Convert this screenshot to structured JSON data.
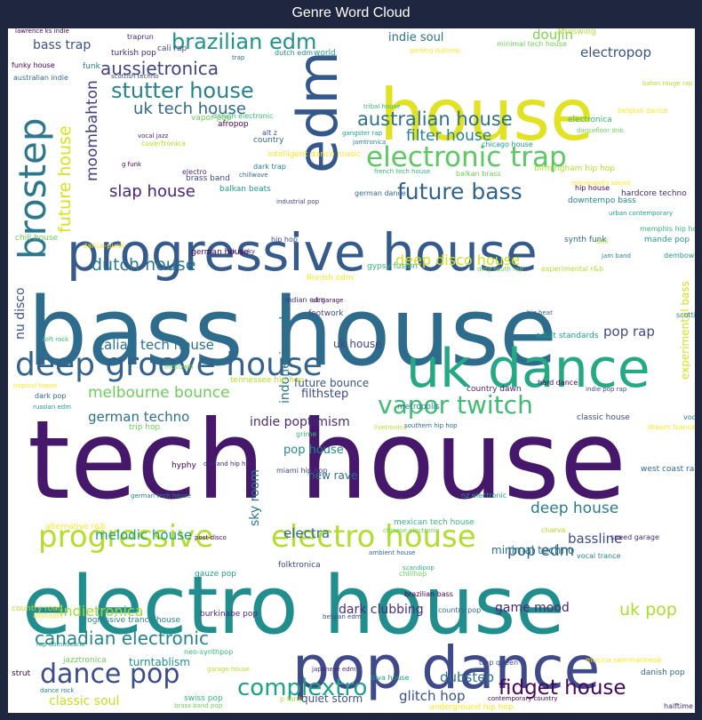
{
  "chart_data": {
    "type": "wordcloud",
    "title": "Genre Word Cloud",
    "colormap": "viridis",
    "background": "#ffffff",
    "words": [
      {
        "text": "tech house",
        "color": "#46186b"
      },
      {
        "text": "bass house",
        "color": "#2e6c8e"
      },
      {
        "text": "electro house",
        "color": "#218e8d"
      },
      {
        "text": "house",
        "color": "#e0e223"
      },
      {
        "text": "edm",
        "color": "#34588c"
      },
      {
        "text": "progressive house",
        "color": "#355b8d"
      },
      {
        "text": "pop dance",
        "color": "#3e4a89"
      },
      {
        "text": "uk dance",
        "color": "#25a883"
      },
      {
        "text": "deep groove house",
        "color": "#33628d"
      },
      {
        "text": "progressive",
        "color": "#b5de2c"
      },
      {
        "text": "electro house",
        "color": "#b0dd2f"
      },
      {
        "text": "electronic trap",
        "color": "#5cc863"
      },
      {
        "text": "brostep",
        "color": "#2a778e"
      },
      {
        "text": "future bass",
        "color": "#33628d"
      },
      {
        "text": "vapor twitch",
        "color": "#3fbc73"
      },
      {
        "text": "dance pop",
        "color": "#3d4d8a"
      },
      {
        "text": "fidget house",
        "color": "#46085c"
      },
      {
        "text": "brazilian edm",
        "color": "#21918c"
      },
      {
        "text": "stutter house",
        "color": "#26828e"
      },
      {
        "text": "complextro",
        "color": "#1fa187"
      },
      {
        "text": "australian house",
        "color": "#2c728e"
      },
      {
        "text": "canadian electronic",
        "color": "#25848e"
      },
      {
        "text": "uk tech house",
        "color": "#31688e"
      },
      {
        "text": "dutch house",
        "color": "#2a788e"
      },
      {
        "text": "italian tech house",
        "color": "#2d708e"
      },
      {
        "text": "melbourne bounce",
        "color": "#6ccd5a"
      },
      {
        "text": "aussietronica",
        "color": "#414487"
      },
      {
        "text": "slap house",
        "color": "#482576"
      },
      {
        "text": "future house",
        "color": "#d8e219"
      },
      {
        "text": "filter house",
        "color": "#26828e"
      },
      {
        "text": "deep disco house",
        "color": "#d2e21b"
      },
      {
        "text": "moombahton",
        "color": "#433e85"
      },
      {
        "text": "nu disco",
        "color": "#3b518b"
      },
      {
        "text": "indonesian edm",
        "color": "#2c728e"
      },
      {
        "text": "german techno",
        "color": "#2d708e"
      },
      {
        "text": "indie poptimism",
        "color": "#472c7a"
      },
      {
        "text": "doujin",
        "color": "#7fd34e"
      },
      {
        "text": "bass trap",
        "color": "#3b528b"
      },
      {
        "text": "electropop",
        "color": "#3b528b"
      },
      {
        "text": "uk pop",
        "color": "#addc30"
      },
      {
        "text": "pop edm",
        "color": "#32658e"
      },
      {
        "text": "deep house",
        "color": "#287d8e"
      },
      {
        "text": "bassline",
        "color": "#3d4d8a"
      },
      {
        "text": "indie soul",
        "color": "#2e6f8e"
      },
      {
        "text": "indietronica",
        "color": "#a0da39"
      },
      {
        "text": "melodic house",
        "color": "#1f9a8a"
      },
      {
        "text": "electra",
        "color": "#31688e"
      },
      {
        "text": "dark clubbing",
        "color": "#472d7b"
      },
      {
        "text": "game mood",
        "color": "#482878"
      },
      {
        "text": "glitch hop",
        "color": "#3b528b"
      },
      {
        "text": "dubstep",
        "color": "#2d718e"
      },
      {
        "text": "sky room",
        "color": "#2a788e"
      },
      {
        "text": "pop rap",
        "color": "#3f4889"
      },
      {
        "text": "minimal techno",
        "color": "#2d708e"
      },
      {
        "text": "filthstep",
        "color": "#3e4a89"
      },
      {
        "text": "future bounce",
        "color": "#3b528b"
      },
      {
        "text": "new rave",
        "color": "#2e6e8e"
      },
      {
        "text": "experimental bass",
        "color": "#d2e21b"
      },
      {
        "text": "classic soul",
        "color": "#c5e021"
      },
      {
        "text": "quiet storm",
        "color": "#3b528b"
      },
      {
        "text": "turntablism",
        "color": "#21918c"
      },
      {
        "text": "pop house",
        "color": "#23888e"
      },
      {
        "text": "uk house",
        "color": "#3e4989"
      }
    ],
    "small_words": [
      "lawrence ks indie",
      "traprun",
      "cali rap",
      "trap",
      "dutch edm",
      "world",
      "tribal house",
      "minimal tech house",
      "afroswing",
      "gaming dubstep",
      "funky house",
      "turkish pop",
      "scottish techno",
      "australian indie",
      "funk",
      "gangster rap",
      "danish electronic",
      "vapor pop",
      "baton rouge rap",
      "belgian dance",
      "afropop",
      "vocal jazz",
      "alt z",
      "country",
      "jamtronica",
      "chicago house",
      "electronica",
      "dancefloor dnb",
      "covertronica",
      "intelligent dance music",
      "g funk",
      "electro",
      "brass band",
      "chillwave",
      "dark trap",
      "balkan beats",
      "french tech house",
      "balkan brass",
      "birmingham hip hop",
      "minneapolis sound",
      "hip house",
      "hardcore techno",
      "industrial pop",
      "german dance",
      "downtempo bass",
      "urban contemporary",
      "memphis hip hop",
      "chill house",
      "drill",
      "dance-punk",
      "german house",
      "uk funky",
      "hip hop",
      "synth funk",
      "jam band",
      "dembow",
      "gypsy fusion",
      "dirty south rap",
      "experimental r&b",
      "finnish edm",
      "uk garage",
      "indian edm",
      "footwork",
      "big beat",
      "scottish rock",
      "adult standards",
      "soft rock",
      "motown",
      "tennessee hip hop",
      "tropical house",
      "hard dance",
      "country dawn",
      "indie pop rap",
      "dark pop",
      "metropolis",
      "russian edm",
      "grime",
      "trip hop",
      "livetronica",
      "dream trance",
      "hyphy",
      "oakland hip hop",
      "miami hip hop",
      "west coast rap",
      "german tech house",
      "nz electronic",
      "mexican tech house",
      "chinese electronic",
      "charva",
      "alternative r&b",
      "post-disco",
      "speed garage",
      "folktronica",
      "ambient house",
      "vocal trance",
      "gauze pop",
      "scandipop",
      "chillhop",
      "country road",
      "afrobeats",
      "brazilian bass",
      "burkinabe pop",
      "belgian edm",
      "country pop",
      "progressive trance house",
      "rap dominicano",
      "neo-synthpop",
      "jazztronica",
      "garage house",
      "musica sammarinese",
      "strut",
      "japanese edm",
      "trap queen",
      "danish pop",
      "dance rock",
      "diva house",
      "swiss pop",
      "brass band pop",
      "p funk",
      "underground hip hop",
      "contemporary country",
      "halftime dnb",
      "classic house",
      "southern hip hop",
      "vocal house",
      "mande pop"
    ]
  }
}
